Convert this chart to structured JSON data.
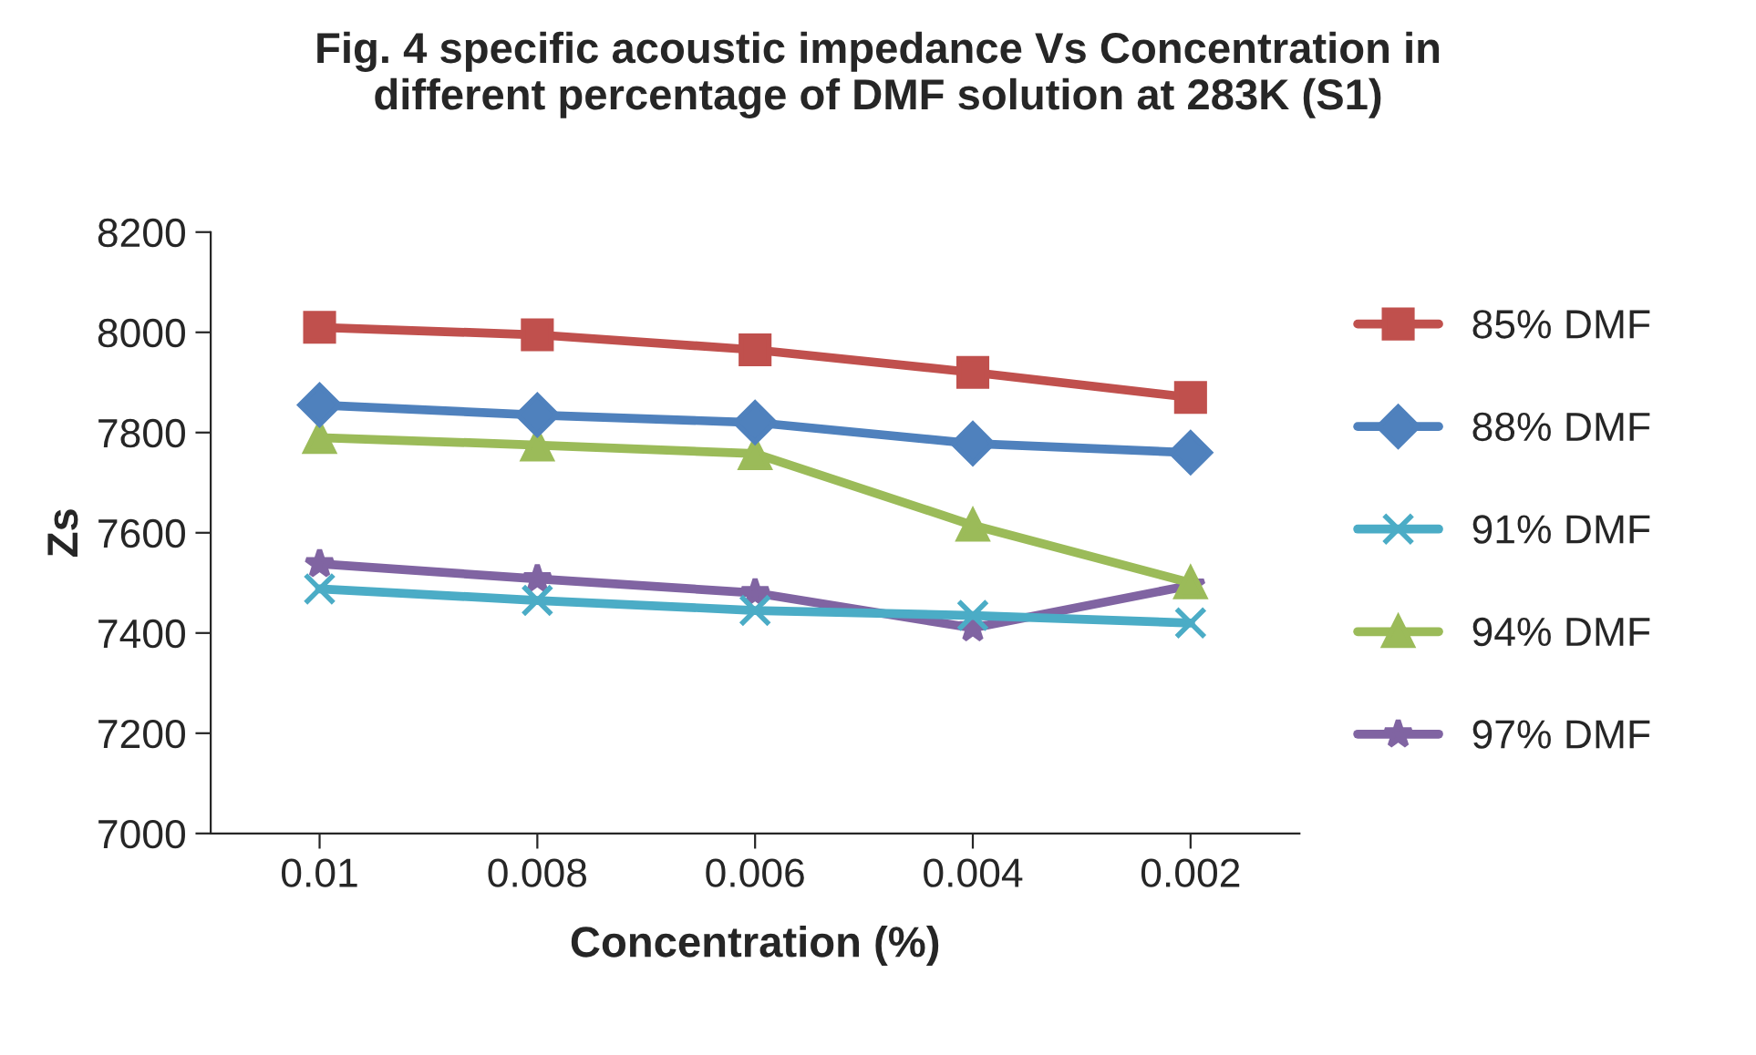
{
  "chart_data": {
    "type": "line",
    "title": "Fig. 4 specific acoustic impedance Vs Concentration in\ndifferent percentage of DMF solution at 283K (S1)",
    "xlabel": "Concentration (%)",
    "ylabel": "Zs",
    "categories": [
      "0.01",
      "0.008",
      "0.006",
      "0.004",
      "0.002"
    ],
    "series": [
      {
        "name": "85% DMF",
        "color": "#c0504d",
        "marker": "square",
        "values": [
          8010,
          7995,
          7965,
          7920,
          7870
        ]
      },
      {
        "name": "88% DMF",
        "color": "#4f81bd",
        "marker": "diamond",
        "values": [
          7855,
          7835,
          7820,
          7778,
          7760
        ]
      },
      {
        "name": "91% DMF",
        "color": "#4bacc6",
        "marker": "cross",
        "values": [
          7488,
          7465,
          7445,
          7435,
          7420
        ]
      },
      {
        "name": "94% DMF",
        "color": "#9bbb59",
        "marker": "triangle",
        "values": [
          7790,
          7775,
          7758,
          7615,
          7500
        ]
      },
      {
        "name": "97% DMF",
        "color": "#8064a2",
        "marker": "star",
        "values": [
          7538,
          7508,
          7480,
          7410,
          7495
        ]
      }
    ],
    "ylim": [
      7000,
      8200
    ],
    "yticks": [
      7000,
      7200,
      7400,
      7600,
      7800,
      8000,
      8200
    ],
    "grid": false,
    "legend": "right",
    "line_style": "solid"
  }
}
